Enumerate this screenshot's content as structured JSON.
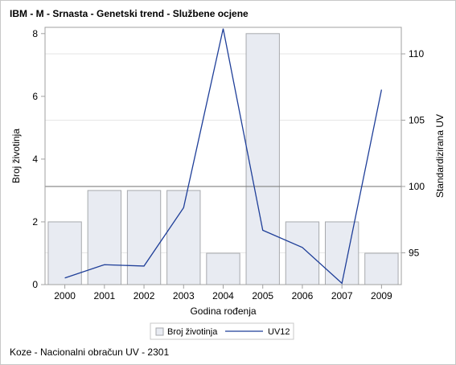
{
  "title": "IBM - M - Srnasta - Genetski trend - Službene ocjene",
  "footnote": "Koze - Nacionalni obračun UV - 2301",
  "colors": {
    "bar_fill": "#e8ebf2",
    "bar_stroke": "#a7a9ad",
    "line": "#1f3f99",
    "reference_line": "#808080",
    "grid": "#e6e6e6",
    "axis": "#a0a0a0"
  },
  "chart_data": {
    "type": "bar",
    "categories": [
      "2000",
      "2001",
      "2002",
      "2003",
      "2004",
      "2005",
      "2006",
      "2007",
      "2009"
    ],
    "xlabel": "Godina rođenja",
    "ylabel": "Broj životinja",
    "y2label": "Standardizirana UV",
    "ylim": [
      0,
      8.2
    ],
    "yticks": [
      0,
      2,
      4,
      6,
      8
    ],
    "y2lim": [
      92.6,
      112.0
    ],
    "y2ticks": [
      95,
      100,
      105,
      110
    ],
    "reference_line_y2": 100,
    "grid": true,
    "legend_position": "bottom",
    "series": [
      {
        "name": "Broj životinja",
        "type": "bar",
        "axis": "left",
        "values": [
          2,
          3,
          3,
          3,
          1,
          8,
          2,
          2,
          1
        ]
      },
      {
        "name": "UV12",
        "type": "line",
        "axis": "right",
        "values": [
          93.1,
          94.1,
          94.0,
          98.4,
          111.9,
          96.7,
          95.4,
          92.7,
          107.3
        ]
      }
    ]
  }
}
